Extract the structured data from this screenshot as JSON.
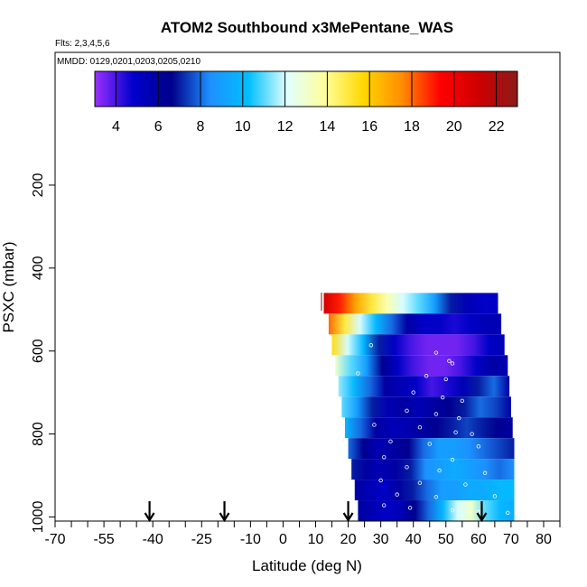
{
  "chart_data": {
    "type": "heatmap",
    "title": "ATOM2 Southbound x3MePentane_WAS",
    "flights_note": "Flts: 2,3,4,5,6",
    "dates_note": "MMDD: 0129,0201,0203,0205,0210",
    "xlabel": "Latitude (deg N)",
    "ylabel": "PSXC (mbar)",
    "xlim": [
      -70,
      85
    ],
    "ylim": [
      1010,
      -120
    ],
    "x_ticks": [
      -70,
      -55,
      -40,
      -25,
      -10,
      0,
      10,
      20,
      30,
      40,
      50,
      60,
      70,
      80
    ],
    "x_tick_labels": [
      "-70",
      "-55",
      "-40",
      "-25",
      "-10",
      "0",
      "10",
      "20",
      "30",
      "40",
      "50",
      "60",
      "70",
      "80"
    ],
    "y_ticks": [
      200,
      400,
      600,
      800,
      1000
    ],
    "y_tick_labels": [
      "200",
      "400",
      "600",
      "800",
      "1000"
    ],
    "colorbar": {
      "range": [
        3,
        23
      ],
      "ticks": [
        4,
        6,
        8,
        10,
        12,
        14,
        16,
        18,
        20,
        22
      ],
      "tick_labels": [
        "4",
        "6",
        "8",
        "10",
        "12",
        "14",
        "16",
        "18",
        "20",
        "22"
      ],
      "colors": [
        "#9b30ff",
        "#0000cd",
        "#00008b",
        "#1e90ff",
        "#00bfff",
        "#e0ffff",
        "#ffff99",
        "#ffd700",
        "#ff8c00",
        "#ff0000",
        "#cd0000",
        "#8b1a1a"
      ]
    },
    "arrows_latitude": [
      -41,
      -18,
      20,
      61
    ],
    "profile_bands": [
      {
        "p_top": 460,
        "p_bottom": 510,
        "lat_start": 12.5,
        "lat_end": 66,
        "values": [
          21,
          19,
          17,
          15,
          13.5,
          12,
          11,
          9,
          7,
          5.5,
          5,
          5
        ]
      },
      {
        "p_top": 510,
        "p_bottom": 560,
        "lat_start": 14,
        "lat_end": 67,
        "values": [
          18,
          15,
          12,
          10,
          8,
          6,
          5,
          5,
          4.5,
          5,
          5.5,
          5.5
        ]
      },
      {
        "p_top": 560,
        "p_bottom": 610,
        "lat_start": 15,
        "lat_end": 68,
        "values": [
          15.5,
          12,
          10,
          7,
          5,
          4,
          3.5,
          3.5,
          3.5,
          4,
          5,
          5.5
        ]
      },
      {
        "p_top": 610,
        "p_bottom": 660,
        "lat_start": 16,
        "lat_end": 69,
        "values": [
          13,
          11,
          9,
          6.5,
          5,
          4,
          3.5,
          3.5,
          4,
          5,
          6,
          5.5
        ]
      },
      {
        "p_top": 660,
        "p_bottom": 710,
        "lat_start": 17,
        "lat_end": 69.5,
        "values": [
          11.5,
          10,
          8,
          6,
          5.5,
          5,
          4,
          4.5,
          5.5,
          7,
          8,
          6
        ]
      },
      {
        "p_top": 710,
        "p_bottom": 760,
        "lat_start": 18,
        "lat_end": 70,
        "values": [
          11,
          9,
          7,
          5.5,
          6,
          5.5,
          6,
          6.5,
          7,
          8,
          7.5,
          6
        ]
      },
      {
        "p_top": 760,
        "p_bottom": 810,
        "lat_start": 19,
        "lat_end": 70.5,
        "values": [
          10,
          8,
          6,
          5.5,
          5.5,
          6,
          6.5,
          7,
          7.5,
          7,
          6.5,
          6
        ]
      },
      {
        "p_top": 810,
        "p_bottom": 860,
        "lat_start": 20,
        "lat_end": 71,
        "values": [
          8,
          6.5,
          5.5,
          6,
          6.5,
          8,
          9,
          9,
          8.5,
          8,
          7.5,
          7
        ]
      },
      {
        "p_top": 860,
        "p_bottom": 910,
        "lat_start": 21,
        "lat_end": 71,
        "values": [
          7,
          6,
          5.5,
          6,
          7,
          8.5,
          9,
          9.5,
          9,
          8.5,
          8,
          8.5
        ]
      },
      {
        "p_top": 910,
        "p_bottom": 960,
        "lat_start": 22,
        "lat_end": 71,
        "values": [
          6,
          5.5,
          5,
          6,
          7,
          8,
          9,
          9,
          9.5,
          9.5,
          10,
          10
        ]
      },
      {
        "p_top": 960,
        "p_bottom": 1010,
        "lat_start": 23,
        "lat_end": 71,
        "values": [
          6,
          5.5,
          5,
          5.5,
          6.5,
          8,
          10,
          12,
          13,
          11,
          10,
          9.5
        ]
      }
    ],
    "sample_points": [
      {
        "lat": 27,
        "p": 586
      },
      {
        "lat": 47,
        "p": 604
      },
      {
        "lat": 51,
        "p": 624
      },
      {
        "lat": 52,
        "p": 630
      },
      {
        "lat": 23,
        "p": 654
      },
      {
        "lat": 44,
        "p": 660
      },
      {
        "lat": 50,
        "p": 668
      },
      {
        "lat": 40,
        "p": 700
      },
      {
        "lat": 49,
        "p": 712
      },
      {
        "lat": 55,
        "p": 720
      },
      {
        "lat": 38,
        "p": 744
      },
      {
        "lat": 47,
        "p": 752
      },
      {
        "lat": 54,
        "p": 762
      },
      {
        "lat": 28,
        "p": 778
      },
      {
        "lat": 42,
        "p": 784
      },
      {
        "lat": 53,
        "p": 796
      },
      {
        "lat": 58,
        "p": 800
      },
      {
        "lat": 33,
        "p": 818
      },
      {
        "lat": 45,
        "p": 824
      },
      {
        "lat": 60,
        "p": 830
      },
      {
        "lat": 31,
        "p": 856
      },
      {
        "lat": 52,
        "p": 862
      },
      {
        "lat": 38,
        "p": 880
      },
      {
        "lat": 48,
        "p": 888
      },
      {
        "lat": 62,
        "p": 894
      },
      {
        "lat": 30,
        "p": 912
      },
      {
        "lat": 42,
        "p": 918
      },
      {
        "lat": 56,
        "p": 922
      },
      {
        "lat": 35,
        "p": 946
      },
      {
        "lat": 47,
        "p": 952
      },
      {
        "lat": 65,
        "p": 950
      },
      {
        "lat": 31,
        "p": 972
      },
      {
        "lat": 39,
        "p": 978
      },
      {
        "lat": 52,
        "p": 984
      },
      {
        "lat": 60,
        "p": 988
      },
      {
        "lat": 69,
        "p": 990
      }
    ]
  }
}
